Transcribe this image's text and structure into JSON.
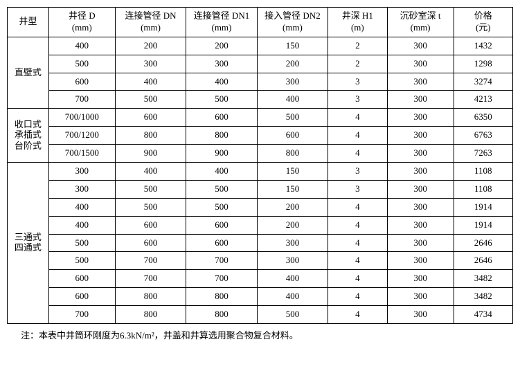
{
  "headers": {
    "type": {
      "l1": "井型",
      "l2": ""
    },
    "d": {
      "l1": "井径 D",
      "l2": "(mm)"
    },
    "dn": {
      "l1": "连接管径 DN",
      "l2": "(mm)"
    },
    "dn1": {
      "l1": "连接管径 DN1",
      "l2": "(mm)"
    },
    "dn2": {
      "l1": "接入管径 DN2",
      "l2": "(mm)"
    },
    "h1": {
      "l1": "井深 H1",
      "l2": "(m)"
    },
    "t": {
      "l1": "沉砂室深 t",
      "l2": "(mm)"
    },
    "price": {
      "l1": "价格",
      "l2": "(元)"
    }
  },
  "groups": [
    {
      "label": "直壁式",
      "rows": [
        {
          "d": "400",
          "dn": "200",
          "dn1": "200",
          "dn2": "150",
          "h1": "2",
          "t": "300",
          "price": "1432"
        },
        {
          "d": "500",
          "dn": "300",
          "dn1": "300",
          "dn2": "200",
          "h1": "2",
          "t": "300",
          "price": "1298"
        },
        {
          "d": "600",
          "dn": "400",
          "dn1": "400",
          "dn2": "300",
          "h1": "3",
          "t": "300",
          "price": "3274"
        },
        {
          "d": "700",
          "dn": "500",
          "dn1": "500",
          "dn2": "400",
          "h1": "3",
          "t": "300",
          "price": "4213"
        }
      ]
    },
    {
      "label": "收口式\n承插式\n台阶式",
      "rows": [
        {
          "d": "700/1000",
          "dn": "600",
          "dn1": "600",
          "dn2": "500",
          "h1": "4",
          "t": "300",
          "price": "6350"
        },
        {
          "d": "700/1200",
          "dn": "800",
          "dn1": "800",
          "dn2": "600",
          "h1": "4",
          "t": "300",
          "price": "6763"
        },
        {
          "d": "700/1500",
          "dn": "900",
          "dn1": "900",
          "dn2": "800",
          "h1": "4",
          "t": "300",
          "price": "7263"
        }
      ]
    },
    {
      "label": "三通式\n四通式",
      "rows": [
        {
          "d": "300",
          "dn": "400",
          "dn1": "400",
          "dn2": "150",
          "h1": "3",
          "t": "300",
          "price": "1108"
        },
        {
          "d": "300",
          "dn": "500",
          "dn1": "500",
          "dn2": "150",
          "h1": "3",
          "t": "300",
          "price": "1108"
        },
        {
          "d": "400",
          "dn": "500",
          "dn1": "500",
          "dn2": "200",
          "h1": "4",
          "t": "300",
          "price": "1914"
        },
        {
          "d": "400",
          "dn": "600",
          "dn1": "600",
          "dn2": "200",
          "h1": "4",
          "t": "300",
          "price": "1914"
        },
        {
          "d": "500",
          "dn": "600",
          "dn1": "600",
          "dn2": "300",
          "h1": "4",
          "t": "300",
          "price": "2646"
        },
        {
          "d": "500",
          "dn": "700",
          "dn1": "700",
          "dn2": "300",
          "h1": "4",
          "t": "300",
          "price": "2646"
        },
        {
          "d": "600",
          "dn": "700",
          "dn1": "700",
          "dn2": "400",
          "h1": "4",
          "t": "300",
          "price": "3482"
        },
        {
          "d": "600",
          "dn": "800",
          "dn1": "800",
          "dn2": "400",
          "h1": "4",
          "t": "300",
          "price": "3482"
        },
        {
          "d": "700",
          "dn": "800",
          "dn1": "800",
          "dn2": "500",
          "h1": "4",
          "t": "300",
          "price": "4734"
        }
      ]
    }
  ],
  "note": "注：本表中井筒环刚度为6.3kN/m²，井盖和井算选用聚合物复合材料。"
}
